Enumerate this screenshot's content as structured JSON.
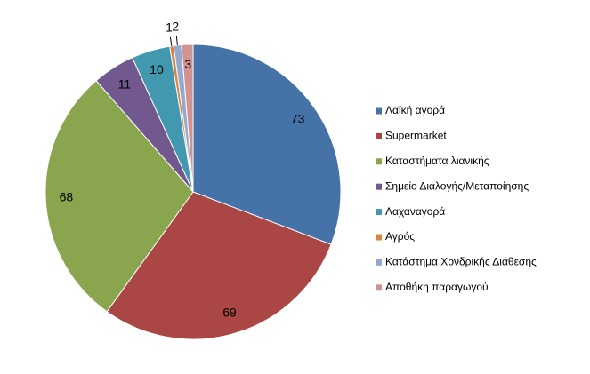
{
  "chart_data": {
    "type": "pie",
    "categories": [
      "Λαϊκή αγορά",
      "Supermarket",
      "Καταστήματα λιανικής",
      "Σημείο Διαλογής/Μεταποίησης",
      "Λαχαναγορά",
      "Αγρός",
      "Κατάστημα Χονδρικής Διάθεσης",
      "Αποθήκη παραγωγού"
    ],
    "values": [
      73,
      69,
      68,
      11,
      10,
      1,
      2,
      3
    ],
    "colors": [
      "#4572a7",
      "#aa4643",
      "#89a54e",
      "#71588f",
      "#4198af",
      "#db843d",
      "#93a9cf",
      "#d19392"
    ],
    "legend": "right"
  }
}
